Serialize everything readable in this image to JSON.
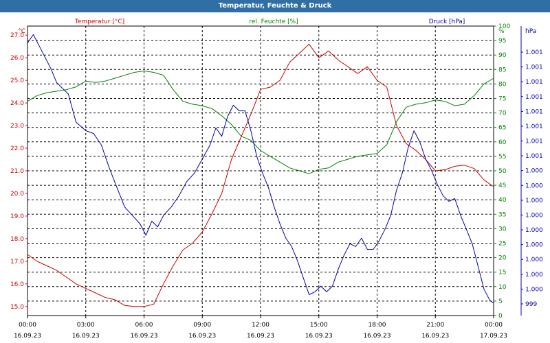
{
  "window": {
    "title": "Temperatur, Feuchte & Druck"
  },
  "colors": {
    "temperature": "#cc0000",
    "humidity": "#008000",
    "pressure": "#0000aa",
    "grid": "#000000",
    "title_bg": "#2f6fa6"
  },
  "chart_data": {
    "type": "line",
    "title": "Temperatur, Feuchte & Druck",
    "grid": true,
    "x_ticks": [
      {
        "time": "00:00",
        "date": "16.09.23"
      },
      {
        "time": "03:00",
        "date": "16.09.23"
      },
      {
        "time": "06:00",
        "date": "16.09.23"
      },
      {
        "time": "09:00",
        "date": "16.09.23"
      },
      {
        "time": "12:00",
        "date": "16.09.23"
      },
      {
        "time": "15:00",
        "date": "16.09.23"
      },
      {
        "time": "18:00",
        "date": "16.09.23"
      },
      {
        "time": "21:00",
        "date": "16.09.23"
      },
      {
        "time": "00:00",
        "date": "17.09.23"
      }
    ],
    "x_range_hours": [
      0,
      24
    ],
    "axes": {
      "temperature": {
        "unit_label": "°C",
        "ylim": [
          14.6,
          27.4
        ],
        "ticks": [
          "15.0",
          "16.0",
          "17.0",
          "18.0",
          "19.0",
          "20.0",
          "21.0",
          "22.0",
          "23.0",
          "24.0",
          "25.0",
          "26.0",
          "27.0"
        ]
      },
      "humidity": {
        "unit_label": "%",
        "ylim": [
          0,
          100
        ],
        "ticks": [
          "0",
          "5",
          "10",
          "15",
          "20",
          "25",
          "30",
          "35",
          "40",
          "45",
          "50",
          "55",
          "60",
          "65",
          "70",
          "75",
          "80",
          "85",
          "90",
          "95",
          "100"
        ]
      },
      "pressure": {
        "unit_label": "hPa",
        "tick_labels": [
          "999",
          "1.000",
          "1.000",
          "1.000",
          "1.000",
          "1.000",
          "1.000",
          "1.000",
          "1.000",
          "1.000",
          "1.001",
          "1.001",
          "1.001",
          "1.001",
          "1.001",
          "1.001",
          "1.001",
          "1.001"
        ]
      }
    },
    "series": [
      {
        "name": "Temperatur [°C]",
        "axis": "temperature",
        "x": [
          0,
          0.5,
          1,
          1.5,
          2,
          2.5,
          3,
          3.5,
          4,
          4.5,
          5,
          5.5,
          6,
          6.5,
          7,
          7.5,
          8,
          8.5,
          9,
          9.5,
          10,
          10.5,
          11,
          11.5,
          12,
          12.5,
          13,
          13.5,
          14,
          14.5,
          15,
          15.5,
          16,
          16.5,
          17,
          17.5,
          18,
          18.5,
          19,
          19.5,
          20,
          20.5,
          21,
          21.5,
          22,
          22.5,
          23,
          23.5,
          24
        ],
        "values": [
          17.3,
          17.0,
          16.8,
          16.6,
          16.3,
          16.0,
          15.8,
          15.6,
          15.4,
          15.3,
          15.05,
          15.0,
          15.0,
          15.1,
          16.0,
          16.8,
          17.5,
          17.8,
          18.3,
          19.1,
          20.0,
          21.5,
          22.5,
          23.5,
          24.6,
          24.7,
          25.0,
          25.8,
          26.2,
          26.6,
          26.0,
          26.3,
          25.9,
          25.6,
          25.3,
          25.6,
          25.0,
          24.7,
          23.0,
          22.2,
          21.9,
          21.5,
          21.0,
          21.05,
          21.2,
          21.25,
          21.1,
          20.6,
          20.3
        ]
      },
      {
        "name": "rel. Feuchte [%]",
        "axis": "humidity",
        "x": [
          0,
          0.5,
          1,
          1.5,
          2,
          2.5,
          3,
          3.5,
          4,
          4.5,
          5,
          5.5,
          6,
          6.5,
          7,
          7.5,
          8,
          8.5,
          9,
          9.5,
          10,
          10.5,
          11,
          11.5,
          12,
          12.5,
          13,
          13.5,
          14,
          14.5,
          15,
          15.5,
          16,
          16.5,
          17,
          17.5,
          18,
          18.5,
          19,
          19.5,
          20,
          20.5,
          21,
          21.5,
          22,
          22.5,
          23,
          23.5,
          24
        ],
        "values": [
          74,
          76,
          77,
          77.5,
          78,
          79,
          81,
          80.5,
          81,
          82,
          83,
          84,
          84.5,
          84,
          83,
          78,
          74,
          73,
          72.5,
          71.5,
          69,
          66,
          62,
          60.5,
          57,
          55,
          53,
          51,
          50,
          49,
          50.5,
          51,
          53,
          54,
          55,
          55.5,
          56,
          59,
          67,
          72,
          73,
          73.5,
          74.5,
          74,
          72.5,
          73,
          76,
          80,
          82
        ]
      },
      {
        "name": "Druck [hPa]",
        "axis": "pressure",
        "x": [
          0,
          0.3,
          0.6,
          0.9,
          1.2,
          1.5,
          1.8,
          2.1,
          2.5,
          3,
          3.4,
          3.8,
          4.2,
          4.6,
          5,
          5.4,
          5.8,
          6.1,
          6.4,
          6.7,
          7,
          7.4,
          7.8,
          8.2,
          8.6,
          9,
          9.4,
          9.7,
          10,
          10.3,
          10.6,
          10.9,
          11.2,
          11.5,
          11.8,
          12.1,
          12.4,
          12.7,
          13,
          13.3,
          13.6,
          13.9,
          14.2,
          14.5,
          14.8,
          15.1,
          15.4,
          15.7,
          16,
          16.3,
          16.6,
          16.9,
          17.2,
          17.5,
          17.8,
          18.1,
          18.4,
          18.7,
          19,
          19.3,
          19.6,
          19.9,
          20.2,
          20.5,
          20.8,
          21.1,
          21.4,
          21.7,
          22,
          22.3,
          22.6,
          22.9,
          23.2,
          23.5,
          23.8,
          24
        ],
        "values": [
          1000.96,
          1000.99,
          1000.95,
          1000.91,
          1000.87,
          1000.82,
          1000.8,
          1000.78,
          1000.68,
          1000.65,
          1000.64,
          1000.6,
          1000.52,
          1000.45,
          1000.38,
          1000.35,
          1000.32,
          1000.28,
          1000.33,
          1000.31,
          1000.35,
          1000.38,
          1000.42,
          1000.47,
          1000.5,
          1000.55,
          1000.6,
          1000.66,
          1000.63,
          1000.7,
          1000.74,
          1000.72,
          1000.72,
          1000.65,
          1000.56,
          1000.5,
          1000.45,
          1000.38,
          1000.32,
          1000.27,
          1000.24,
          1000.19,
          1000.13,
          1000.07,
          1000.08,
          1000.1,
          1000.08,
          1000.1,
          1000.16,
          1000.21,
          1000.25,
          1000.24,
          1000.27,
          1000.23,
          1000.23,
          1000.26,
          1000.3,
          1000.35,
          1000.44,
          1000.5,
          1000.59,
          1000.65,
          1000.61,
          1000.55,
          1000.51,
          1000.46,
          1000.42,
          1000.4,
          1000.41,
          1000.35,
          1000.3,
          1000.25,
          1000.17,
          1000.09,
          1000.05,
          1000.04
        ]
      }
    ]
  }
}
